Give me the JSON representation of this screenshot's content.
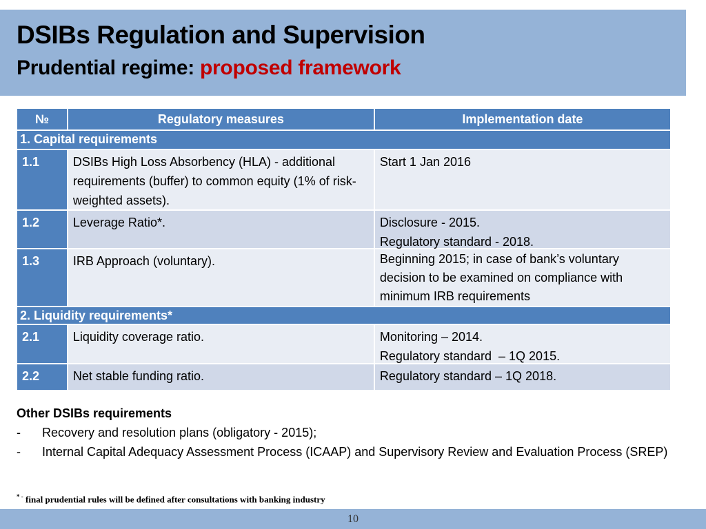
{
  "title": "DSIBs Regulation and Supervision",
  "subtitle_prefix": "Prudential regime: ",
  "subtitle_highlight": "proposed framework",
  "table": {
    "headers": [
      "№",
      "Regulatory measures",
      "Implementation date"
    ],
    "sections": [
      {
        "label": "1. Capital requirements",
        "rows": [
          {
            "num": "1.1",
            "measure": "DSIBs High Loss Absorbency (HLA) - additional requirements (buffer) to common equity (1% of risk-weighted assets).",
            "date": "Start 1 Jan 2016"
          },
          {
            "num": "1.2",
            "measure": "Leverage Ratio*.",
            "date": "Disclosure - 2015.\nRegulatory standard - 2018."
          },
          {
            "num": "1.3",
            "measure": "IRB Approach (voluntary).",
            "date": "Beginning 2015; in case of bank’s voluntary decision to be examined on compliance with minimum IRB requirements"
          }
        ]
      },
      {
        "label": "2. Liquidity requirements*",
        "rows": [
          {
            "num": "2.1",
            "measure": "Liquidity coverage ratio.",
            "date": "Monitoring – 2014.\nRegulatory standard  – 1Q 2015."
          },
          {
            "num": "2.2",
            "measure": "Net stable funding ratio.",
            "date": "Regulatory standard – 1Q 2018."
          }
        ]
      }
    ]
  },
  "other": {
    "heading": "Other DSIBs requirements",
    "items": [
      {
        "dash": "-",
        "text": "Recovery and resolution plans (obligatory - 2015);"
      },
      {
        "dash": "-",
        "text": "Internal Capital Adequacy Assessment Process (ICAAP) and Supervisory Review and Evaluation Process (SREP)"
      }
    ]
  },
  "footnote_mark": "* -",
  "footnote": "final prudential rules will be defined after consultations with banking industry",
  "page_number": "10"
}
